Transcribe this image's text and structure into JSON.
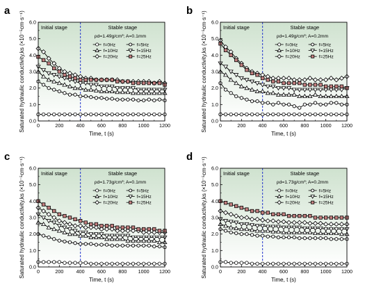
{
  "chart_data": [
    {
      "type": "line",
      "panel": "a",
      "condition": "ρd=1.49g/cm³; A=0.1mm",
      "stages": [
        "Initial stage",
        "Stable stage"
      ],
      "stage_boundary": 400,
      "xlabel": "Time, t (s)",
      "ylabel": "Saturated hydraulic conductivity,ks (×10⁻⁵cm·s⁻¹)",
      "xlim": [
        0,
        1200
      ],
      "ylim": [
        0,
        6.0
      ],
      "xticks": [
        0,
        200,
        400,
        600,
        800,
        1000,
        1200
      ],
      "yticks": [
        0.0,
        1.0,
        2.0,
        3.0,
        4.0,
        5.0,
        6.0
      ],
      "x": [
        0,
        50,
        100,
        150,
        200,
        250,
        300,
        350,
        400,
        450,
        500,
        550,
        600,
        650,
        700,
        750,
        800,
        850,
        900,
        950,
        1000,
        1050,
        1100,
        1150,
        1200
      ],
      "series": [
        {
          "name": "f=0Hz",
          "marker": "circle",
          "values": [
            0.4,
            0.4,
            0.4,
            0.4,
            0.4,
            0.4,
            0.4,
            0.4,
            0.4,
            0.4,
            0.4,
            0.4,
            0.4,
            0.4,
            0.4,
            0.4,
            0.4,
            0.4,
            0.4,
            0.4,
            0.4,
            0.4,
            0.4,
            0.4,
            0.4
          ]
        },
        {
          "name": "f=5Hz",
          "marker": "hexagon",
          "values": [
            2.4,
            2.2,
            2.0,
            1.9,
            1.8,
            1.7,
            1.6,
            1.6,
            1.5,
            1.5,
            1.45,
            1.4,
            1.4,
            1.35,
            1.35,
            1.3,
            1.3,
            1.3,
            1.3,
            1.25,
            1.25,
            1.3,
            1.25,
            1.3,
            1.25
          ]
        },
        {
          "name": "f=10Hz",
          "marker": "triangle-up",
          "values": [
            3.0,
            2.7,
            2.5,
            2.4,
            2.3,
            2.2,
            2.1,
            2.0,
            2.0,
            1.9,
            1.9,
            1.85,
            1.8,
            1.8,
            1.8,
            1.75,
            1.75,
            1.75,
            1.7,
            1.7,
            1.7,
            1.7,
            1.7,
            1.7,
            1.7
          ]
        },
        {
          "name": "f=15Hz",
          "marker": "triangle-down",
          "values": [
            3.3,
            3.1,
            2.9,
            2.8,
            2.7,
            2.6,
            2.5,
            2.4,
            2.3,
            2.3,
            2.2,
            2.2,
            2.1,
            2.1,
            2.1,
            2.0,
            2.0,
            2.0,
            2.0,
            1.9,
            1.9,
            1.9,
            1.9,
            1.9,
            1.9
          ]
        },
        {
          "name": "f=20Hz",
          "marker": "diamond",
          "values": [
            4.4,
            4.2,
            3.8,
            3.5,
            3.2,
            3.0,
            2.9,
            2.8,
            2.7,
            2.6,
            2.6,
            2.5,
            2.5,
            2.5,
            2.5,
            2.5,
            2.4,
            2.4,
            2.4,
            2.4,
            2.4,
            2.4,
            2.3,
            2.4,
            2.3
          ]
        },
        {
          "name": "f=25Hz",
          "marker": "square",
          "values": [
            3.9,
            3.7,
            3.5,
            3.2,
            3.0,
            2.8,
            2.7,
            2.6,
            2.5,
            2.5,
            2.5,
            2.5,
            2.5,
            2.5,
            2.5,
            2.4,
            2.4,
            2.4,
            2.3,
            2.3,
            2.3,
            2.3,
            2.3,
            2.3,
            2.2
          ]
        }
      ]
    },
    {
      "type": "line",
      "panel": "b",
      "condition": "ρd=1.49g/cm³; A=0.2mm",
      "stages": [
        "Initial stage",
        "Stable stage"
      ],
      "stage_boundary": 400,
      "xlabel": "Time, t (s)",
      "ylabel": "Saturated hydraulic conductivity,ks (×10⁻⁵cm·s⁻¹)",
      "xlim": [
        0,
        1200
      ],
      "ylim": [
        0,
        6.0
      ],
      "xticks": [
        0,
        200,
        400,
        600,
        800,
        1000,
        1200
      ],
      "yticks": [
        0.0,
        1.0,
        2.0,
        3.0,
        4.0,
        5.0,
        6.0
      ],
      "x": [
        0,
        50,
        100,
        150,
        200,
        250,
        300,
        350,
        400,
        450,
        500,
        550,
        600,
        650,
        700,
        750,
        800,
        850,
        900,
        950,
        1000,
        1050,
        1100,
        1150,
        1200
      ],
      "series": [
        {
          "name": "f=0Hz",
          "marker": "circle",
          "values": [
            0.4,
            0.4,
            0.4,
            0.4,
            0.4,
            0.4,
            0.4,
            0.4,
            0.4,
            0.4,
            0.4,
            0.4,
            0.4,
            0.4,
            0.4,
            0.4,
            0.4,
            0.4,
            0.4,
            0.4,
            0.4,
            0.4,
            0.4,
            0.4,
            0.4
          ]
        },
        {
          "name": "f=5Hz",
          "marker": "hexagon",
          "values": [
            2.3,
            1.9,
            1.7,
            1.5,
            1.4,
            1.3,
            1.2,
            1.2,
            1.1,
            1.1,
            1.0,
            1.1,
            1.0,
            1.0,
            0.9,
            0.8,
            1.0,
            1.0,
            1.1,
            1.0,
            1.0,
            1.1,
            1.1,
            1.0,
            1.0
          ]
        },
        {
          "name": "f=10Hz",
          "marker": "triangle-up",
          "values": [
            3.0,
            2.8,
            2.5,
            2.3,
            2.1,
            2.0,
            1.9,
            1.8,
            1.8,
            1.7,
            1.7,
            1.6,
            1.6,
            1.6,
            1.6,
            1.5,
            1.5,
            1.5,
            1.6,
            1.5,
            1.5,
            1.5,
            1.5,
            1.5,
            1.5
          ]
        },
        {
          "name": "f=15Hz",
          "marker": "triangle-down",
          "values": [
            3.5,
            3.3,
            3.0,
            2.8,
            2.6,
            2.5,
            2.4,
            2.3,
            2.2,
            2.1,
            2.1,
            2.0,
            2.0,
            2.0,
            1.9,
            1.9,
            1.9,
            1.9,
            1.9,
            1.9,
            1.9,
            1.9,
            1.9,
            1.9,
            2.0
          ]
        },
        {
          "name": "f=20Hz",
          "marker": "diamond",
          "values": [
            4.9,
            4.5,
            4.2,
            3.8,
            3.5,
            3.2,
            3.0,
            2.9,
            2.8,
            2.7,
            2.6,
            2.6,
            2.6,
            2.6,
            2.5,
            2.5,
            2.5,
            2.6,
            2.5,
            2.5,
            2.5,
            2.6,
            2.5,
            2.6,
            2.7
          ]
        },
        {
          "name": "f=25Hz",
          "marker": "square",
          "values": [
            4.7,
            4.3,
            4.0,
            3.7,
            3.4,
            3.1,
            2.9,
            2.8,
            2.6,
            2.5,
            2.4,
            2.4,
            2.3,
            2.3,
            2.3,
            2.3,
            2.2,
            2.2,
            2.2,
            2.2,
            2.1,
            2.1,
            2.1,
            2.1,
            2.0
          ]
        }
      ]
    },
    {
      "type": "line",
      "panel": "c",
      "condition": "ρd=1.73g/cm³; A=0.1mm",
      "stages": [
        "Initial stage",
        "Stable stage"
      ],
      "stage_boundary": 400,
      "xlabel": "Time, t (s)",
      "ylabel": "Saturated hydraulic conductivity,ks (×10⁻⁵cm·s⁻¹)",
      "xlim": [
        0,
        1200
      ],
      "ylim": [
        0,
        6.0
      ],
      "xticks": [
        0,
        200,
        400,
        600,
        800,
        1000,
        1200
      ],
      "yticks": [
        0.0,
        1.0,
        2.0,
        3.0,
        4.0,
        5.0,
        6.0
      ],
      "x": [
        0,
        50,
        100,
        150,
        200,
        250,
        300,
        350,
        400,
        450,
        500,
        550,
        600,
        650,
        700,
        750,
        800,
        850,
        900,
        950,
        1000,
        1050,
        1100,
        1150,
        1200
      ],
      "series": [
        {
          "name": "f=0Hz",
          "marker": "circle",
          "values": [
            0.3,
            0.3,
            0.3,
            0.3,
            0.3,
            0.25,
            0.25,
            0.25,
            0.25,
            0.25,
            0.2,
            0.2,
            0.2,
            0.2,
            0.2,
            0.2,
            0.2,
            0.2,
            0.2,
            0.2,
            0.2,
            0.2,
            0.2,
            0.2,
            0.2
          ]
        },
        {
          "name": "f=5Hz",
          "marker": "hexagon",
          "values": [
            2.0,
            1.9,
            1.8,
            1.7,
            1.6,
            1.55,
            1.5,
            1.45,
            1.4,
            1.4,
            1.4,
            1.35,
            1.35,
            1.35,
            1.3,
            1.3,
            1.3,
            1.3,
            1.3,
            1.3,
            1.3,
            1.3,
            1.25,
            1.25,
            1.2
          ]
        },
        {
          "name": "f=10Hz",
          "marker": "triangle-up",
          "values": [
            2.7,
            2.6,
            2.4,
            2.3,
            2.2,
            2.1,
            2.0,
            2.0,
            1.9,
            1.9,
            1.8,
            1.8,
            1.8,
            1.7,
            1.7,
            1.7,
            1.7,
            1.6,
            1.6,
            1.6,
            1.6,
            1.6,
            1.6,
            1.5,
            1.5
          ]
        },
        {
          "name": "f=15Hz",
          "marker": "triangle-down",
          "values": [
            3.2,
            3.0,
            2.8,
            2.7,
            2.5,
            2.4,
            2.3,
            2.2,
            2.1,
            2.1,
            2.0,
            2.0,
            2.0,
            1.9,
            1.9,
            1.9,
            1.9,
            1.9,
            1.8,
            1.8,
            1.8,
            1.8,
            1.8,
            1.8,
            1.8
          ]
        },
        {
          "name": "f=20Hz",
          "marker": "diamond",
          "values": [
            3.6,
            3.4,
            3.2,
            3.0,
            2.8,
            2.7,
            2.6,
            2.5,
            2.5,
            2.4,
            2.4,
            2.4,
            2.3,
            2.3,
            2.3,
            2.2,
            2.2,
            2.2,
            2.2,
            2.2,
            2.1,
            2.1,
            2.1,
            2.1,
            2.1
          ]
        },
        {
          "name": "f=25Hz",
          "marker": "square",
          "values": [
            4.0,
            3.8,
            3.6,
            3.4,
            3.2,
            3.1,
            3.0,
            2.9,
            2.8,
            2.7,
            2.6,
            2.6,
            2.5,
            2.5,
            2.5,
            2.4,
            2.4,
            2.4,
            2.4,
            2.3,
            2.3,
            2.3,
            2.3,
            2.2,
            2.2
          ]
        }
      ]
    },
    {
      "type": "line",
      "panel": "d",
      "condition": "ρd=1.73g/cm³; A=0.2mm",
      "stages": [
        "Initial stage",
        "Stable stage"
      ],
      "stage_boundary": 400,
      "xlabel": "Time, t (s)",
      "ylabel": "Saturated hydraulic conductivity,ks (×10⁻⁵cm·s⁻¹)",
      "xlim": [
        0,
        1200
      ],
      "ylim": [
        0,
        6.0
      ],
      "xticks": [
        0,
        200,
        400,
        600,
        800,
        1000,
        1200
      ],
      "yticks": [
        0.0,
        1.0,
        2.0,
        3.0,
        4.0,
        5.0,
        6.0
      ],
      "x": [
        0,
        50,
        100,
        150,
        200,
        250,
        300,
        350,
        400,
        450,
        500,
        550,
        600,
        650,
        700,
        750,
        800,
        850,
        900,
        950,
        1000,
        1050,
        1100,
        1150,
        1200
      ],
      "series": [
        {
          "name": "f=0Hz",
          "marker": "circle",
          "values": [
            0.3,
            0.3,
            0.25,
            0.25,
            0.25,
            0.25,
            0.2,
            0.2,
            0.2,
            0.2,
            0.2,
            0.2,
            0.2,
            0.2,
            0.2,
            0.2,
            0.2,
            0.2,
            0.2,
            0.2,
            0.2,
            0.2,
            0.2,
            0.2,
            0.2
          ]
        },
        {
          "name": "f=5Hz",
          "marker": "hexagon",
          "values": [
            2.3,
            2.2,
            2.1,
            2.05,
            2.0,
            2.0,
            1.95,
            1.9,
            1.9,
            1.85,
            1.85,
            1.8,
            1.8,
            1.8,
            1.8,
            1.75,
            1.75,
            1.75,
            1.75,
            1.75,
            1.75,
            1.7,
            1.7,
            1.7,
            1.7
          ]
        },
        {
          "name": "f=10Hz",
          "marker": "triangle-up",
          "values": [
            2.6,
            2.5,
            2.4,
            2.35,
            2.3,
            2.3,
            2.25,
            2.2,
            2.2,
            2.2,
            2.15,
            2.15,
            2.1,
            2.1,
            2.1,
            2.1,
            2.1,
            2.1,
            2.05,
            2.05,
            2.05,
            2.05,
            2.05,
            2.0,
            2.0
          ]
        },
        {
          "name": "f=15Hz",
          "marker": "triangle-down",
          "values": [
            2.9,
            2.8,
            2.75,
            2.7,
            2.6,
            2.6,
            2.55,
            2.5,
            2.5,
            2.45,
            2.45,
            2.45,
            2.4,
            2.4,
            2.4,
            2.4,
            2.35,
            2.35,
            2.35,
            2.35,
            2.3,
            2.3,
            2.3,
            2.3,
            2.3
          ]
        },
        {
          "name": "f=20Hz",
          "marker": "diamond",
          "values": [
            3.4,
            3.3,
            3.2,
            3.1,
            3.0,
            3.0,
            2.9,
            2.9,
            2.85,
            2.8,
            2.8,
            2.75,
            2.75,
            2.7,
            2.7,
            2.7,
            2.7,
            2.65,
            2.65,
            2.65,
            2.6,
            2.6,
            2.6,
            2.6,
            2.6
          ]
        },
        {
          "name": "f=25Hz",
          "marker": "square",
          "values": [
            4.0,
            3.9,
            3.8,
            3.7,
            3.6,
            3.5,
            3.4,
            3.4,
            3.3,
            3.3,
            3.2,
            3.2,
            3.2,
            3.1,
            3.1,
            3.1,
            3.1,
            3.1,
            3.0,
            3.0,
            3.0,
            3.0,
            3.0,
            3.0,
            3.0
          ]
        }
      ]
    }
  ],
  "colors": {
    "plot_bg_top": "#cfe2cf",
    "plot_bg_bottom": "#ffffff",
    "boundary_line": "#2233cc",
    "series_line": "#000000",
    "marker_fill": "#ffffff",
    "f25_fill": "#c48080"
  }
}
